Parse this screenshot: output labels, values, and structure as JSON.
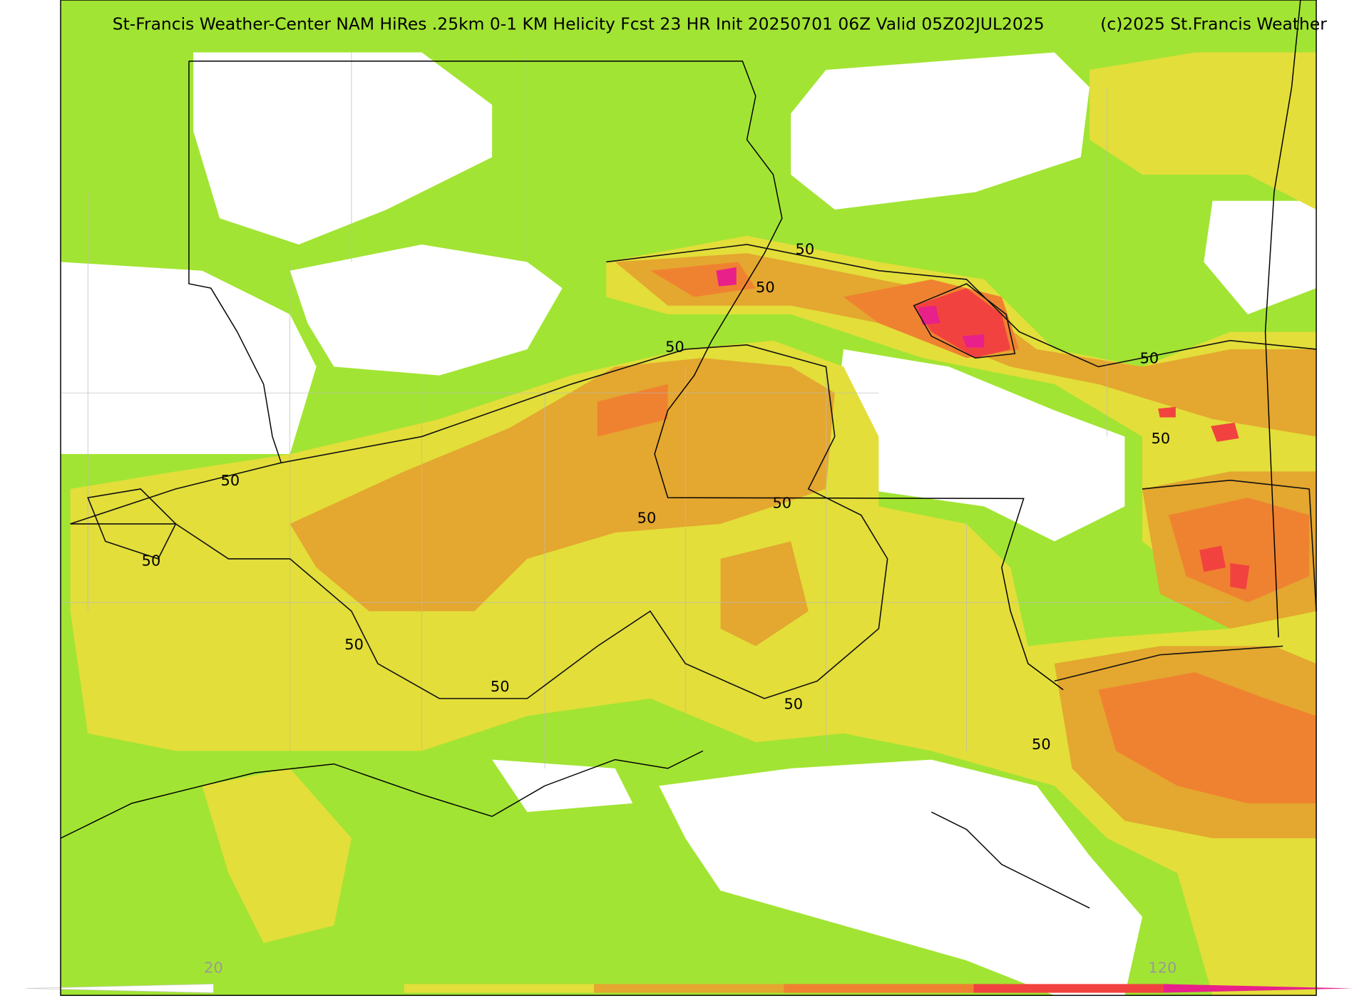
{
  "header": {
    "title": "St-Francis Weather-Center NAM HiRes .25km 0-1 KM Helicity Fcst 23 HR Init 20250701 06Z  Valid 05Z02JUL2025",
    "credit": "(c)2025 St.Francis Weather"
  },
  "contour_labels": [
    "50",
    "50",
    "50",
    "50",
    "50",
    "50",
    "50",
    "50",
    "50",
    "50",
    "50",
    "50",
    "50"
  ],
  "colorbar": {
    "labels": [
      "20",
      "120"
    ]
  }
}
